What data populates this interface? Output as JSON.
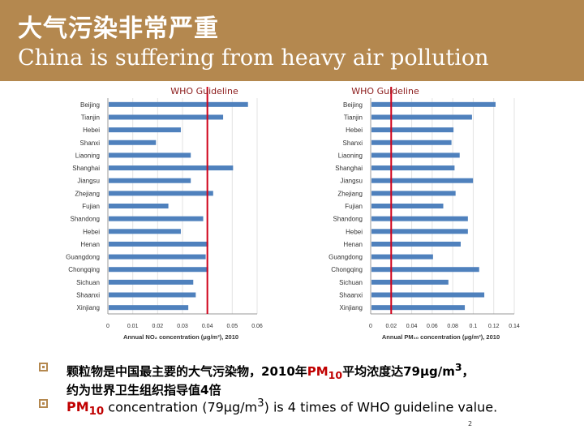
{
  "header": {
    "title_cn": "大气污染非常严重",
    "title_en": "China is suffering from heavy air pollution",
    "bg_color": "#b4884f"
  },
  "chart_data": [
    {
      "type": "bar",
      "orientation": "horizontal",
      "categories": [
        "Beijing",
        "Tianjin",
        "Hebei",
        "Shanxi",
        "Liaoning",
        "Shanghai",
        "Jiangsu",
        "Zhejiang",
        "Fujian",
        "Shandong",
        "Hebei",
        "Henan",
        "Guangdong",
        "Chongqing",
        "Sichuan",
        "Shaanxi",
        "Xinjiang"
      ],
      "values": [
        0.056,
        0.046,
        0.029,
        0.019,
        0.033,
        0.05,
        0.033,
        0.042,
        0.024,
        0.038,
        0.029,
        0.04,
        0.039,
        0.04,
        0.034,
        0.035,
        0.032
      ],
      "xlabel": "Annual NO₂ concentration (μg/m³), 2010",
      "xlim": [
        0,
        0.06
      ],
      "xticks": [
        "0",
        "0.01",
        "0.02",
        "0.03",
        "0.04",
        "0.05",
        "0.06"
      ],
      "reference_line": {
        "label": "WHO Guideline",
        "value": 0.04,
        "color": "#d0021b"
      },
      "bar_color": "#4f81bd"
    },
    {
      "type": "bar",
      "orientation": "horizontal",
      "categories": [
        "Beijing",
        "Tianjin",
        "Hebei",
        "Shanxi",
        "Liaoning",
        "Shanghai",
        "Jiangsu",
        "Zhejiang",
        "Fujian",
        "Shandong",
        "Hebei",
        "Henan",
        "Guangdong",
        "Chongqing",
        "Sichuan",
        "Shaanxi",
        "Xinjiang"
      ],
      "values": [
        0.121,
        0.098,
        0.08,
        0.078,
        0.086,
        0.081,
        0.099,
        0.082,
        0.07,
        0.094,
        0.094,
        0.087,
        0.06,
        0.105,
        0.075,
        0.11,
        0.091
      ],
      "xlabel": "Annual PM₁₀ concentration (μg/m³), 2010",
      "xlim": [
        0,
        0.14
      ],
      "xticks": [
        "0",
        "0.02",
        "0.04",
        "0.06",
        "0.08",
        "0.1",
        "0.12",
        "0.14"
      ],
      "reference_line": {
        "label": "WHO Guideline",
        "value": 0.02,
        "color": "#d0021b"
      },
      "bar_color": "#4f81bd"
    }
  ],
  "bullets": {
    "b1_line1_a": "颗粒物是中国最主要的大气污染物，2010年",
    "b1_pm": "PM",
    "b1_sub": "10",
    "b1_line1_b": "平均浓度达79μg/m",
    "b1_sup": "3",
    "b1_line1_c": "，",
    "b1_line2": "约为世界卫生组织指导值4倍",
    "b2_pm": "PM",
    "b2_sub": "10",
    "b2_a": " concentration (79μg/m",
    "b2_sup": "3",
    "b2_b": ") is 4 times of WHO guideline value."
  },
  "page_number": "2"
}
